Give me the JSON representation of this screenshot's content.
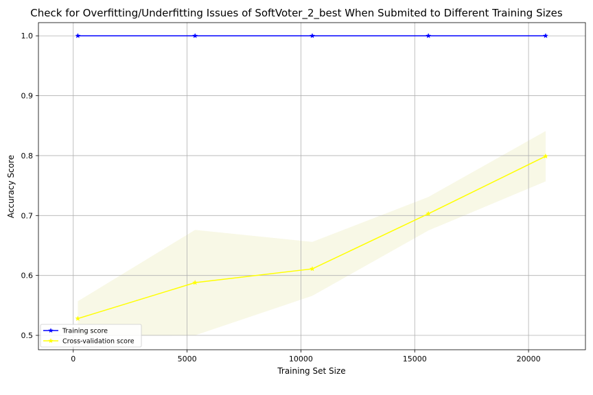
{
  "chart_data": {
    "type": "line",
    "title": "Check for Overfitting/Underfitting Issues of SoftVoter_2_best When Submited to Different Training Sizes",
    "xlabel": "Training Set Size",
    "ylabel": "Accuracy Score",
    "xlim": [
      -1530,
      22500
    ],
    "ylim": [
      0.476,
      1.022
    ],
    "grid": true,
    "legend_position": "lower-left",
    "x": [
      200,
      5350,
      10500,
      15600,
      20750
    ],
    "xticks": [
      0,
      5000,
      10000,
      15000,
      20000
    ],
    "yticks": [
      0.5,
      0.6,
      0.7,
      0.8,
      0.9,
      1.0
    ],
    "xtick_labels": [
      "0",
      "5000",
      "10000",
      "15000",
      "20000"
    ],
    "ytick_labels": [
      "0.5",
      "0.6",
      "0.7",
      "0.8",
      "0.9",
      "1.0"
    ],
    "series": [
      {
        "name": "Training score",
        "values": [
          1.0,
          1.0,
          1.0,
          1.0,
          1.0
        ],
        "color": "#0000ff",
        "marker": "star"
      },
      {
        "name": "Cross-validation score",
        "values": [
          0.528,
          0.588,
          0.611,
          0.703,
          0.799
        ],
        "band_upper": [
          0.557,
          0.676,
          0.656,
          0.731,
          0.841
        ],
        "band_lower": [
          0.499,
          0.5,
          0.566,
          0.675,
          0.757
        ],
        "color": "#ffff00",
        "band_color": "#f5f5dc",
        "marker": "star"
      }
    ]
  }
}
